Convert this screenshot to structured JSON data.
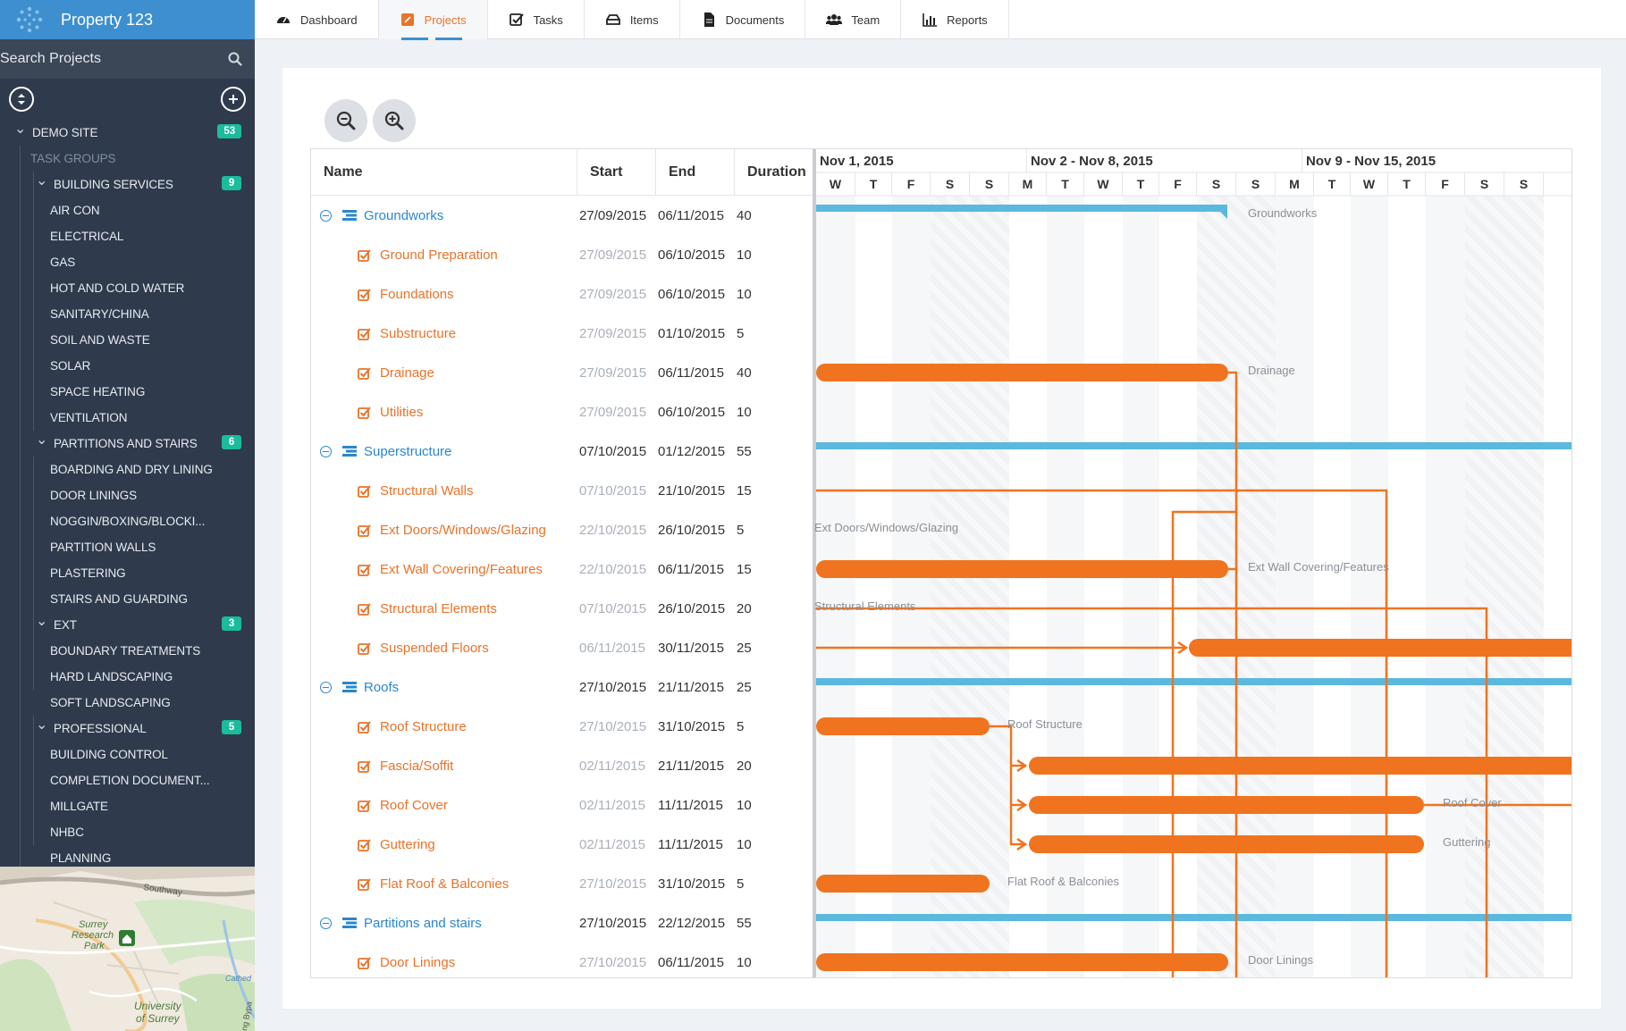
{
  "app": {
    "title": "Property 123"
  },
  "sidebar": {
    "search_label": "Search Projects",
    "tree": [
      {
        "label": "DEMO SITE",
        "level": "lvl0",
        "chev": true,
        "badge": "53"
      },
      {
        "label": "TASK GROUPS",
        "level": "lvl0-sub"
      },
      {
        "label": "BUILDING SERVICES",
        "level": "lvl1",
        "chev": true,
        "badge": "9"
      },
      {
        "label": "AIR CON",
        "level": "lvl2"
      },
      {
        "label": "ELECTRICAL",
        "level": "lvl2"
      },
      {
        "label": "GAS",
        "level": "lvl2"
      },
      {
        "label": "HOT AND COLD WATER",
        "level": "lvl2"
      },
      {
        "label": "SANITARY/CHINA",
        "level": "lvl2"
      },
      {
        "label": "SOIL AND WASTE",
        "level": "lvl2"
      },
      {
        "label": "SOLAR",
        "level": "lvl2"
      },
      {
        "label": "SPACE HEATING",
        "level": "lvl2"
      },
      {
        "label": "VENTILATION",
        "level": "lvl2"
      },
      {
        "label": "PARTITIONS AND STAIRS",
        "level": "lvl1",
        "chev": true,
        "badge": "6"
      },
      {
        "label": "BOARDING AND DRY LINING",
        "level": "lvl2"
      },
      {
        "label": "DOOR LININGS",
        "level": "lvl2"
      },
      {
        "label": "NOGGIN/BOXING/BLOCKI...",
        "level": "lvl2"
      },
      {
        "label": "PARTITION WALLS",
        "level": "lvl2"
      },
      {
        "label": "PLASTERING",
        "level": "lvl2"
      },
      {
        "label": "STAIRS AND GUARDING",
        "level": "lvl2"
      },
      {
        "label": "EXT",
        "level": "lvl1",
        "chev": true,
        "badge": "3"
      },
      {
        "label": "BOUNDARY TREATMENTS",
        "level": "lvl2"
      },
      {
        "label": "HARD LANDSCAPING",
        "level": "lvl2"
      },
      {
        "label": "SOFT LANDSCAPING",
        "level": "lvl2"
      },
      {
        "label": "PROFESSIONAL",
        "level": "lvl1",
        "chev": true,
        "badge": "5"
      },
      {
        "label": "BUILDING CONTROL",
        "level": "lvl2"
      },
      {
        "label": "COMPLETION DOCUMENT...",
        "level": "lvl2"
      },
      {
        "label": "MILLGATE",
        "level": "lvl2"
      },
      {
        "label": "NHBC",
        "level": "lvl2"
      },
      {
        "label": "PLANNING",
        "level": "lvl2"
      }
    ],
    "map": {
      "labels": [
        "Southway",
        "Surrey",
        "Research",
        "Park",
        "University",
        "of Surrey",
        "Cathed",
        "ng Bypa"
      ]
    }
  },
  "nav": {
    "tabs": [
      {
        "label": "Dashboard",
        "icon": "dashboard-icon",
        "active": false
      },
      {
        "label": "Projects",
        "icon": "projects-icon",
        "active": true
      },
      {
        "label": "Tasks",
        "icon": "tasks-icon",
        "active": false
      },
      {
        "label": "Items",
        "icon": "items-icon",
        "active": false
      },
      {
        "label": "Documents",
        "icon": "documents-icon",
        "active": false
      },
      {
        "label": "Team",
        "icon": "team-icon",
        "active": false
      },
      {
        "label": "Reports",
        "icon": "reports-icon",
        "active": false
      }
    ]
  },
  "gantt": {
    "columns": {
      "name": "Name",
      "start": "Start",
      "end": "End",
      "duration": "Duration"
    },
    "weeks": [
      "Nov 1, 2015",
      "Nov 2 - Nov 8, 2015",
      "Nov 9 - Nov 15, 2015"
    ],
    "days": [
      "W",
      "T",
      "F",
      "S",
      "S",
      "M",
      "T",
      "W",
      "T",
      "F",
      "S",
      "S",
      "M",
      "T",
      "W",
      "T",
      "F",
      "S",
      "S"
    ],
    "rows": [
      {
        "name": "Groundworks",
        "type": "parent",
        "start": "27/09/2015",
        "end": "06/11/2015",
        "duration": "40"
      },
      {
        "name": "Ground Preparation",
        "type": "task",
        "start": "27/09/2015",
        "end": "06/10/2015",
        "duration": "10"
      },
      {
        "name": "Foundations",
        "type": "task",
        "start": "27/09/2015",
        "end": "06/10/2015",
        "duration": "10"
      },
      {
        "name": "Substructure",
        "type": "task",
        "start": "27/09/2015",
        "end": "01/10/2015",
        "duration": "5"
      },
      {
        "name": "Drainage",
        "type": "task",
        "start": "27/09/2015",
        "end": "06/11/2015",
        "duration": "40"
      },
      {
        "name": "Utilities",
        "type": "task",
        "start": "27/09/2015",
        "end": "06/10/2015",
        "duration": "10"
      },
      {
        "name": "Superstructure",
        "type": "parent",
        "start": "07/10/2015",
        "end": "01/12/2015",
        "duration": "55"
      },
      {
        "name": "Structural Walls",
        "type": "task",
        "start": "07/10/2015",
        "end": "21/10/2015",
        "duration": "15"
      },
      {
        "name": "Ext Doors/Windows/Glazing",
        "type": "task",
        "start": "22/10/2015",
        "end": "26/10/2015",
        "duration": "5"
      },
      {
        "name": "Ext Wall Covering/Features",
        "type": "task",
        "start": "22/10/2015",
        "end": "06/11/2015",
        "duration": "15"
      },
      {
        "name": "Structural Elements",
        "type": "task",
        "start": "07/10/2015",
        "end": "26/10/2015",
        "duration": "20"
      },
      {
        "name": "Suspended Floors",
        "type": "task",
        "start": "06/11/2015",
        "end": "30/11/2015",
        "duration": "25"
      },
      {
        "name": "Roofs",
        "type": "parent",
        "start": "27/10/2015",
        "end": "21/11/2015",
        "duration": "25"
      },
      {
        "name": "Roof Structure",
        "type": "task",
        "start": "27/10/2015",
        "end": "31/10/2015",
        "duration": "5"
      },
      {
        "name": "Fascia/Soffit",
        "type": "task",
        "start": "02/11/2015",
        "end": "21/11/2015",
        "duration": "20"
      },
      {
        "name": "Roof Cover",
        "type": "task",
        "start": "02/11/2015",
        "end": "11/11/2015",
        "duration": "10"
      },
      {
        "name": "Guttering",
        "type": "task",
        "start": "02/11/2015",
        "end": "11/11/2015",
        "duration": "10"
      },
      {
        "name": "Flat Roof & Balconies",
        "type": "task",
        "start": "27/10/2015",
        "end": "31/10/2015",
        "duration": "5"
      },
      {
        "name": "Partitions and stairs",
        "type": "parent",
        "start": "27/10/2015",
        "end": "22/12/2015",
        "duration": "55"
      },
      {
        "name": "Door Linings",
        "type": "task",
        "start": "27/10/2015",
        "end": "06/11/2015",
        "duration": "10"
      }
    ],
    "bar_labels": {
      "Groundworks": "Groundworks",
      "Drainage": "Drainage",
      "Ext Doors/Windows/Glazing": "Ext Doors/Windows/Glazing",
      "Ext Wall Covering/Features": "Ext Wall Covering/Features",
      "Structural Elements": "Structural Elements",
      "Roof Structure": "Roof Structure",
      "Roof Cover": "Roof Cover",
      "Guttering": "Guttering",
      "Flat Roof & Balconies": "Flat Roof & Balconies",
      "Door Linings": "Door Linings"
    }
  },
  "colors": {
    "accent": "#e8732a",
    "brand": "#3d8fd0",
    "parent_bar": "#5bb8de",
    "task_bar": "#f07320",
    "badge": "#1abc9c",
    "sidebar": "#2f3a4c"
  }
}
